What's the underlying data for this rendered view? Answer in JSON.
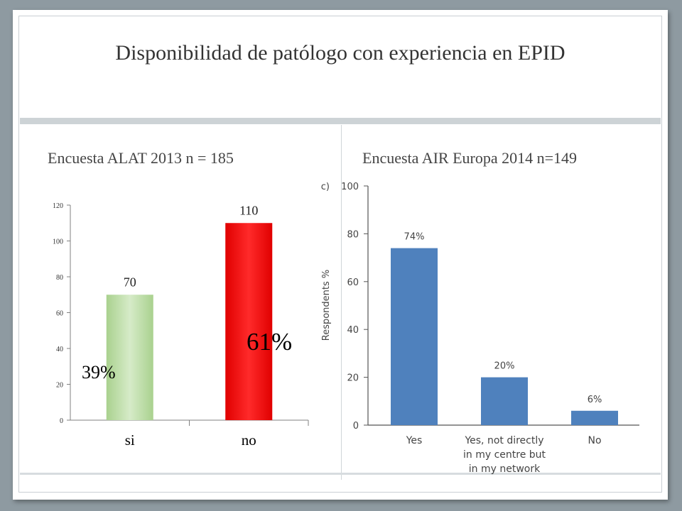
{
  "slide": {
    "title": "Disponibilidad de patólogo con experiencia en EPID",
    "left_subtitle": "Encuesta  ALAT 2013 n = 185",
    "right_subtitle": "Encuesta AIR Europa 2014 n=149"
  },
  "chart_data": [
    {
      "type": "bar",
      "title": "",
      "categories": [
        "si",
        "no"
      ],
      "values": [
        70,
        110
      ],
      "data_labels": [
        "70",
        "110"
      ],
      "ylim": [
        0,
        120
      ],
      "yticks": [
        0,
        20,
        40,
        60,
        80,
        100,
        120
      ],
      "xlabel": "",
      "ylabel": "",
      "bar_colors": [
        "#c6e0b4",
        "#ff0000"
      ],
      "annotations": [
        "39%",
        "61%"
      ],
      "grid": false
    },
    {
      "type": "bar",
      "title": "",
      "panel_label": "c)",
      "categories": [
        "Yes",
        "Yes, not directly in my centre but in my network",
        "No"
      ],
      "category_lines": [
        [
          "Yes"
        ],
        [
          "Yes, not directly",
          "in my centre but",
          "in my network"
        ],
        [
          "No"
        ]
      ],
      "values": [
        74,
        20,
        6
      ],
      "data_labels": [
        "74%",
        "20%",
        "6%"
      ],
      "ylim": [
        0,
        100
      ],
      "yticks": [
        0,
        20,
        40,
        60,
        80,
        100
      ],
      "ylabel": "Respondents %",
      "xlabel": "",
      "bar_color": "#4f81bd",
      "grid": false
    }
  ]
}
